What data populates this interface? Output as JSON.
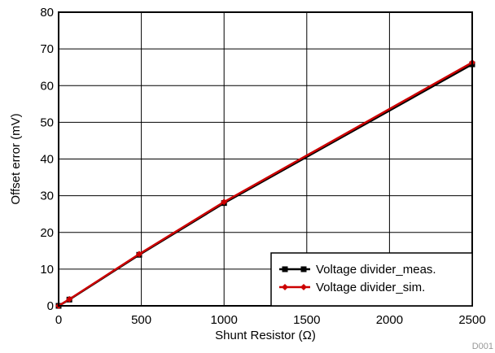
{
  "chart_data": {
    "type": "line",
    "title": "",
    "xlabel": "Shunt Resistor (Ω)",
    "ylabel": "Offset error (mV)",
    "xlim": [
      0,
      2500
    ],
    "ylim": [
      0,
      80
    ],
    "x_ticks": [
      0,
      500,
      1000,
      1500,
      2000,
      2500
    ],
    "y_ticks": [
      0,
      10,
      20,
      30,
      40,
      50,
      60,
      70,
      80
    ],
    "grid": true,
    "legend_position": "bottom-right",
    "series": [
      {
        "name": "Voltage divider_meas.",
        "color": "#000000",
        "marker": "square",
        "x": [
          0,
          65,
          487,
          1000,
          2500
        ],
        "y": [
          0,
          1.7,
          13.9,
          28.0,
          65.8
        ]
      },
      {
        "name": "Voltage divider_sim.",
        "color": "#cc0000",
        "marker": "diamond",
        "x": [
          0,
          65,
          487,
          1000,
          2500
        ],
        "y": [
          0,
          1.8,
          14.1,
          28.3,
          66.3
        ]
      }
    ]
  },
  "footnote": "D001"
}
